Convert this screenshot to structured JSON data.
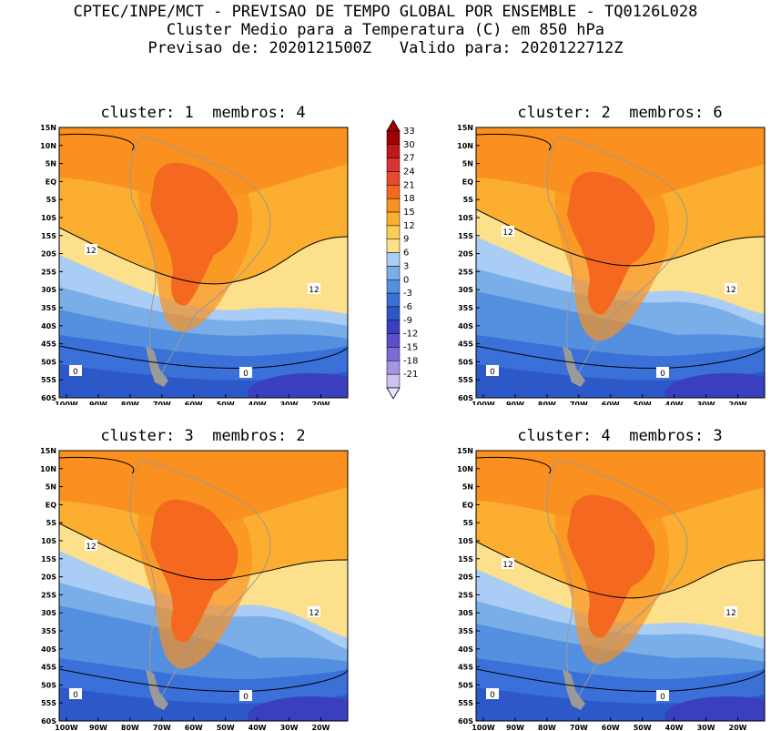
{
  "header": {
    "line1": "CPTEC/INPE/MCT - PREVISAO DE TEMPO GLOBAL POR ENSEMBLE - TQ0126L028",
    "line2": "Cluster Medio para a Temperatura (C) em 850 hPa",
    "line3": "Previsao de: 2020121500Z   Valido para: 2020122712Z"
  },
  "panels": [
    {
      "title": "cluster: 1  membros: 4",
      "contour_labels": [
        "12",
        "12",
        "0",
        "0"
      ]
    },
    {
      "title": "cluster: 2  membros: 6",
      "contour_labels": [
        "12",
        "12",
        "0",
        "0"
      ]
    },
    {
      "title": "cluster: 3  membros: 2",
      "contour_labels": [
        "12",
        "12",
        "0",
        "0"
      ]
    },
    {
      "title": "cluster: 4  membros: 3",
      "contour_labels": [
        "12",
        "12",
        "0",
        "0"
      ]
    }
  ],
  "axes": {
    "lat_labels": [
      "15N",
      "10N",
      "5N",
      "EQ",
      "5S",
      "10S",
      "15S",
      "20S",
      "25S",
      "30S",
      "35S",
      "40S",
      "45S",
      "50S",
      "55S",
      "60S"
    ],
    "lon_labels": [
      "100W",
      "90W",
      "80W",
      "70W",
      "60W",
      "50W",
      "40W",
      "30W",
      "20W"
    ]
  },
  "colorbar": {
    "labels": [
      "33",
      "30",
      "27",
      "24",
      "21",
      "18",
      "15",
      "12",
      "9",
      "6",
      "3",
      "0",
      "-3",
      "-6",
      "-9",
      "-12",
      "-15",
      "-18",
      "-21"
    ],
    "colors": [
      "#a00000",
      "#c01818",
      "#d83434",
      "#e84a2c",
      "#f46820",
      "#f99020",
      "#fbae30",
      "#fccd55",
      "#fce08c",
      "#a9cdf4",
      "#7aaee8",
      "#5590e0",
      "#3a70d8",
      "#2d58c8",
      "#3a3fc0",
      "#5a4fcc",
      "#7a6cd8",
      "#a596e4",
      "#cdc2f0"
    ]
  },
  "colors": {
    "orange_dark": "#f46820",
    "orange": "#f99020",
    "orange_light": "#fbae30",
    "yellow": "#fce08c",
    "light_blue": "#a9cdf4",
    "blue": "#7aaee8",
    "mid_blue": "#5590e0",
    "dark_blue": "#3a70d8",
    "navy": "#2d58c8",
    "purple": "#3a3fc0"
  }
}
